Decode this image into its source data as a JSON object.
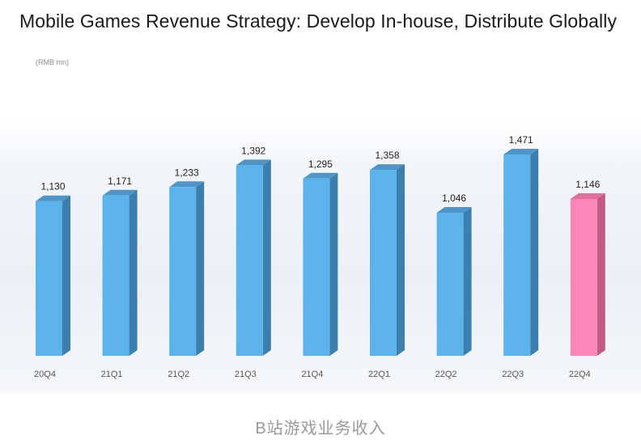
{
  "title": "Mobile Games Revenue Strategy: Develop In-house, Distribute Globally",
  "unit": "(RMB mn)",
  "caption": "B站游戏业务收入",
  "colors": {
    "bar_front": "#5cb3ea",
    "bar_side": "#3a7fae",
    "bar_top": "#4f95c9",
    "highlight_front": "#f986b6",
    "highlight_side": "#c25a86",
    "highlight_top": "#e070a0"
  },
  "chart_data": {
    "type": "bar",
    "categories": [
      "20Q4",
      "21Q1",
      "21Q2",
      "21Q3",
      "21Q4",
      "22Q1",
      "22Q2",
      "22Q3",
      "22Q4"
    ],
    "values": [
      1130,
      1171,
      1233,
      1392,
      1295,
      1358,
      1046,
      1471,
      1146
    ],
    "value_labels": [
      "1,130",
      "1,171",
      "1,233",
      "1,392",
      "1,295",
      "1,358",
      "1,046",
      "1,471",
      "1,146"
    ],
    "highlighted_category": "22Q4",
    "ylabel": "(RMB mn)",
    "grid": false,
    "legend": "none"
  }
}
